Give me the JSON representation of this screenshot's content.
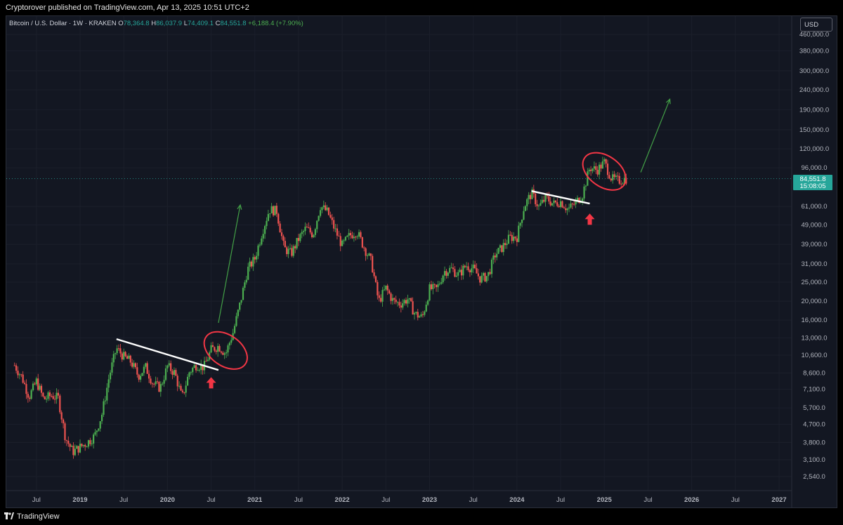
{
  "meta": {
    "published": "Cryptorover published on TradingView.com, Apr 13, 2025 10:51 UTC+2"
  },
  "header": {
    "symbol": "Bitcoin / U.S. Dollar · 1W · KRAKEN",
    "o_label": "O",
    "o_value": "78,364.8",
    "h_label": "H",
    "h_value": "86,037.9",
    "l_label": "L",
    "l_value": "74,409.1",
    "c_label": "C",
    "c_value": "84,551.8",
    "change": "+6,188.4 (+7.90%)"
  },
  "currency": "USD",
  "price_tag": {
    "price": "84,551.8",
    "countdown": "15:08:05"
  },
  "footer": {
    "brand": "TradingView"
  },
  "colors": {
    "background": "#131722",
    "up": "#4caf50",
    "down": "#ef5350",
    "accent_red": "#f23645",
    "trendline": "#ffffff",
    "arrow_green": "#43a047"
  },
  "chart_data": {
    "type": "candlestick",
    "scale": "log",
    "y_axis_labels": [
      "460,000.0",
      "380,000.0",
      "300,000.0",
      "240,000.0",
      "190,000.0",
      "150,000.0",
      "120,000.0",
      "96,000.0",
      "61,000.0",
      "49,000.0",
      "39,000.0",
      "31,000.0",
      "25,000.0",
      "20,000.0",
      "16,000.0",
      "13,000.0",
      "10,600.0",
      "8,600.0",
      "7,100.0",
      "5,700.0",
      "4,700.0",
      "3,800.0",
      "3,100.0",
      "2,540.0"
    ],
    "y_axis_values": [
      460000,
      380000,
      300000,
      240000,
      190000,
      150000,
      120000,
      96000,
      61000,
      49000,
      39000,
      31000,
      25000,
      20000,
      16000,
      13000,
      10600,
      8600,
      7100,
      5700,
      4700,
      3800,
      3100,
      2540
    ],
    "x_axis_labels": [
      "Jul",
      "2019",
      "Jul",
      "2020",
      "Jul",
      "2021",
      "Jul",
      "2022",
      "Jul",
      "2023",
      "Jul",
      "2024",
      "Jul",
      "2025",
      "Jul",
      "2026",
      "Jul",
      "2027"
    ],
    "x_axis_dates": [
      "2018-07",
      "2019-01",
      "2019-07",
      "2020-01",
      "2020-07",
      "2021-01",
      "2021-07",
      "2022-01",
      "2022-07",
      "2023-01",
      "2023-07",
      "2024-01",
      "2024-07",
      "2025-01",
      "2025-07",
      "2026-01",
      "2026-07",
      "2027-01"
    ],
    "last_close": 84551.8,
    "price_path": [
      [
        "2018-04",
        9400
      ],
      [
        "2018-05",
        8200
      ],
      [
        "2018-06",
        6500
      ],
      [
        "2018-07",
        7800
      ],
      [
        "2018-08",
        6300
      ],
      [
        "2018-09",
        6600
      ],
      [
        "2018-10",
        6400
      ],
      [
        "2018-11",
        4000
      ],
      [
        "2018-12",
        3400
      ],
      [
        "2019-01",
        3600
      ],
      [
        "2019-02",
        3800
      ],
      [
        "2019-03",
        4100
      ],
      [
        "2019-04",
        5300
      ],
      [
        "2019-05",
        8300
      ],
      [
        "2019-06",
        11500
      ],
      [
        "2019-07",
        10400
      ],
      [
        "2019-08",
        9800
      ],
      [
        "2019-09",
        8300
      ],
      [
        "2019-10",
        9200
      ],
      [
        "2019-11",
        7600
      ],
      [
        "2019-12",
        7200
      ],
      [
        "2020-01",
        9300
      ],
      [
        "2020-02",
        8600
      ],
      [
        "2020-03",
        6400
      ],
      [
        "2020-04",
        8700
      ],
      [
        "2020-05",
        9500
      ],
      [
        "2020-06",
        9200
      ],
      [
        "2020-07",
        11300
      ],
      [
        "2020-08",
        11800
      ],
      [
        "2020-09",
        10800
      ],
      [
        "2020-10",
        13800
      ],
      [
        "2020-11",
        19600
      ],
      [
        "2020-12",
        29000
      ],
      [
        "2021-01",
        33000
      ],
      [
        "2021-02",
        45000
      ],
      [
        "2021-03",
        58800
      ],
      [
        "2021-04",
        57700
      ],
      [
        "2021-05",
        37300
      ],
      [
        "2021-06",
        35000
      ],
      [
        "2021-07",
        41500
      ],
      [
        "2021-08",
        47100
      ],
      [
        "2021-09",
        43800
      ],
      [
        "2021-10",
        61300
      ],
      [
        "2021-11",
        57000
      ],
      [
        "2021-12",
        46300
      ],
      [
        "2022-01",
        38500
      ],
      [
        "2022-02",
        43200
      ],
      [
        "2022-03",
        45500
      ],
      [
        "2022-04",
        37700
      ],
      [
        "2022-05",
        31800
      ],
      [
        "2022-06",
        19900
      ],
      [
        "2022-07",
        23300
      ],
      [
        "2022-08",
        20000
      ],
      [
        "2022-09",
        19400
      ],
      [
        "2022-10",
        20500
      ],
      [
        "2022-11",
        17200
      ],
      [
        "2022-12",
        16500
      ],
      [
        "2023-01",
        23100
      ],
      [
        "2023-02",
        23100
      ],
      [
        "2023-03",
        28400
      ],
      [
        "2023-04",
        29200
      ],
      [
        "2023-05",
        27200
      ],
      [
        "2023-06",
        30500
      ],
      [
        "2023-07",
        29200
      ],
      [
        "2023-08",
        26000
      ],
      [
        "2023-09",
        27000
      ],
      [
        "2023-10",
        34500
      ],
      [
        "2023-11",
        37700
      ],
      [
        "2023-12",
        42300
      ],
      [
        "2024-01",
        42600
      ],
      [
        "2024-02",
        61200
      ],
      [
        "2024-03",
        71300
      ],
      [
        "2024-04",
        60600
      ],
      [
        "2024-05",
        67500
      ],
      [
        "2024-06",
        62700
      ],
      [
        "2024-07",
        64600
      ],
      [
        "2024-08",
        58900
      ],
      [
        "2024-09",
        63300
      ],
      [
        "2024-10",
        70200
      ],
      [
        "2024-11",
        96400
      ],
      [
        "2024-12",
        93400
      ],
      [
        "2025-01",
        102400
      ],
      [
        "2025-02",
        84300
      ],
      [
        "2025-03",
        82500
      ],
      [
        "2025-04",
        84551.8
      ]
    ],
    "trendlines": [
      {
        "from": [
          "2019-06",
          12800
        ],
        "to": [
          "2020-08",
          8900
        ]
      },
      {
        "from": [
          "2024-03",
          73000
        ],
        "to": [
          "2024-11",
          63000
        ]
      }
    ],
    "projection_arrows": [
      {
        "from": [
          "2020-08",
          15500
        ],
        "to": [
          "2020-11",
          62000
        ]
      },
      {
        "from": [
          "2025-06",
          91000
        ],
        "to": [
          "2025-10",
          215000
        ]
      }
    ],
    "circles": [
      {
        "center": [
          "2020-09",
          11200
        ]
      },
      {
        "center": [
          "2025-01",
          92000
        ]
      }
    ],
    "up_arrows": [
      {
        "at": [
          "2020-07",
          7600
        ]
      },
      {
        "at": [
          "2024-11",
          52000
        ]
      }
    ]
  }
}
